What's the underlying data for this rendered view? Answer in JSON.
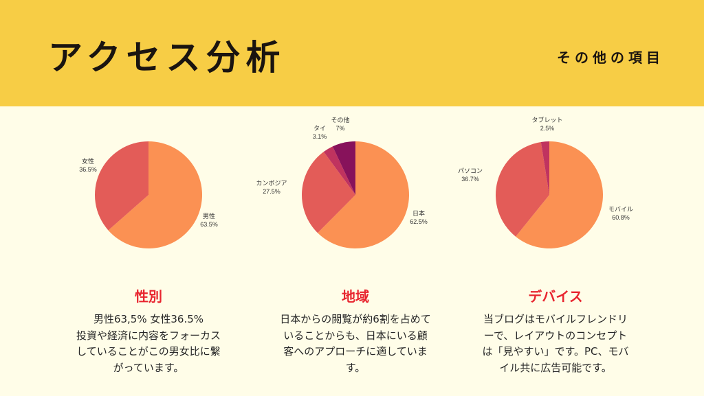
{
  "header": {
    "title": "アクセス分析",
    "subtitle": "その他の項目"
  },
  "colors": {
    "header_bg": "#f7cd45",
    "page_bg": "#fffde8",
    "slice_orange": "#fb9153",
    "slice_red": "#e35c58",
    "slice_crimson": "#c0335f",
    "slice_purple": "#87125b",
    "heading_red": "#e8252f"
  },
  "chart_data": [
    {
      "type": "pie",
      "title": "",
      "slices": [
        {
          "label": "男性",
          "pct_text": "63.5%",
          "value": 63.5,
          "color": "#fb9153"
        },
        {
          "label": "女性",
          "pct_text": "36.5%",
          "value": 36.5,
          "color": "#e35c58"
        }
      ]
    },
    {
      "type": "pie",
      "title": "",
      "slices": [
        {
          "label": "日本",
          "pct_text": "62.5%",
          "value": 62.5,
          "color": "#fb9153"
        },
        {
          "label": "カンボジア",
          "pct_text": "27.5%",
          "value": 27.5,
          "color": "#e35c58"
        },
        {
          "label": "タイ",
          "pct_text": "3.1%",
          "value": 3.1,
          "color": "#c0335f"
        },
        {
          "label": "その他",
          "pct_text": "7%",
          "value": 7,
          "color": "#87125b"
        }
      ]
    },
    {
      "type": "pie",
      "title": "",
      "slices": [
        {
          "label": "モバイル",
          "pct_text": "60.8%",
          "value": 60.8,
          "color": "#fb9153"
        },
        {
          "label": "パソコン",
          "pct_text": "36.7%",
          "value": 36.7,
          "color": "#e35c58"
        },
        {
          "label": "タブレット",
          "pct_text": "2.5%",
          "value": 2.5,
          "color": "#c0335f"
        }
      ]
    }
  ],
  "sections": [
    {
      "title": "性別",
      "body": "男性63,5%  女性36.5%\n投資や経済に内容をフォーカス\nしていることがこの男女比に繋\nがっています。"
    },
    {
      "title": "地域",
      "body": "日本からの閲覧が約6割を占めて\nいることからも、日本にいる顧\n客へのアプローチに適していま\nす。"
    },
    {
      "title": "デバイス",
      "body": "当ブログはモバイルフレンドリ\nーで、レイアウトのコンセプト\nは「見やすい」です。PC、モバ\nイル共に広告可能です。"
    }
  ]
}
